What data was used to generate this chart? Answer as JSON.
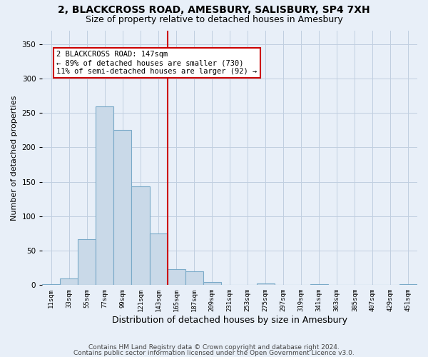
{
  "title": "2, BLACKCROSS ROAD, AMESBURY, SALISBURY, SP4 7XH",
  "subtitle": "Size of property relative to detached houses in Amesbury",
  "xlabel": "Distribution of detached houses by size in Amesbury",
  "ylabel": "Number of detached properties",
  "bar_labels": [
    "11sqm",
    "33sqm",
    "55sqm",
    "77sqm",
    "99sqm",
    "121sqm",
    "143sqm",
    "165sqm",
    "187sqm",
    "209sqm",
    "231sqm",
    "253sqm",
    "275sqm",
    "297sqm",
    "319sqm",
    "341sqm",
    "363sqm",
    "385sqm",
    "407sqm",
    "429sqm",
    "451sqm"
  ],
  "bar_values": [
    1,
    10,
    67,
    260,
    225,
    143,
    75,
    23,
    20,
    5,
    0,
    0,
    2,
    0,
    0,
    1,
    0,
    0,
    0,
    0,
    1
  ],
  "bar_color": "#c9d9e8",
  "bar_edge_color": "#7aaac8",
  "vline_x_index": 6.5,
  "annotation_text": "2 BLACKCROSS ROAD: 147sqm\n← 89% of detached houses are smaller (730)\n11% of semi-detached houses are larger (92) →",
  "annotation_box_color": "#ffffff",
  "annotation_edge_color": "#cc0000",
  "vline_color": "#cc0000",
  "footer_line1": "Contains HM Land Registry data © Crown copyright and database right 2024.",
  "footer_line2": "Contains public sector information licensed under the Open Government Licence v3.0.",
  "title_fontsize": 10,
  "subtitle_fontsize": 9,
  "ylabel_fontsize": 8,
  "xlabel_fontsize": 9,
  "annotation_fontsize": 7.5,
  "tick_fontsize": 6.5,
  "footer_fontsize": 6.5,
  "ylim": [
    0,
    370
  ],
  "grid_color": "#c0cfe0",
  "background_color": "#e8eff8"
}
